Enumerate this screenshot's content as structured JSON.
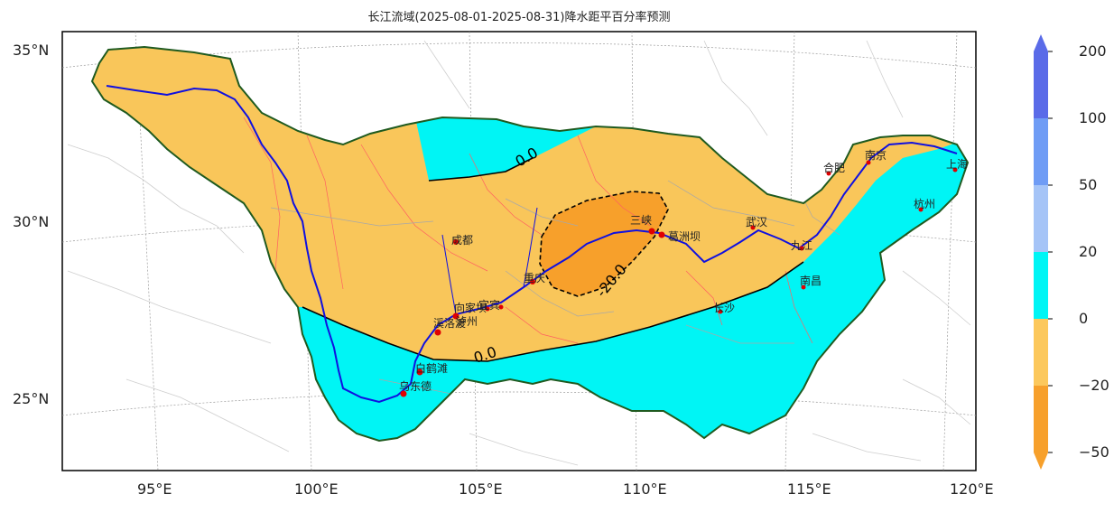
{
  "title": "长江流域(2025-08-01-2025-08-31)降水距平百分率预测",
  "lat_labels": [
    "35°N",
    "30°N",
    "25°N"
  ],
  "lon_labels": [
    "95°E",
    "100°E",
    "105°E",
    "110°E",
    "115°E",
    "120°E"
  ],
  "contour_labels": [
    "0.0",
    "0.0",
    "-20.0"
  ],
  "cities": [
    "成都",
    "重庆",
    "三峡",
    "葛洲坝",
    "武汉",
    "合肥",
    "南京",
    "杭州",
    "上海",
    "南昌",
    "长沙",
    "九江",
    "宜宾",
    "泸州",
    "向家坝",
    "溪洛渡",
    "白鹤滩",
    "乌东德"
  ],
  "legend": {
    "ticks": [
      "200",
      "100",
      "50",
      "20",
      "0",
      "−20",
      "−50"
    ],
    "colors": [
      "#5a6be8",
      "#6f9cf5",
      "#a5c4f7",
      "#00f5f5",
      "#fcc85c",
      "#f7a02b"
    ]
  },
  "colors": {
    "cyan": "#00f5f5",
    "light_orange": "#f9c65a",
    "dark_orange": "#f7a02b",
    "boundary": "#1f5a1f",
    "river": "#1010e0",
    "tributary": "#ff6060"
  }
}
